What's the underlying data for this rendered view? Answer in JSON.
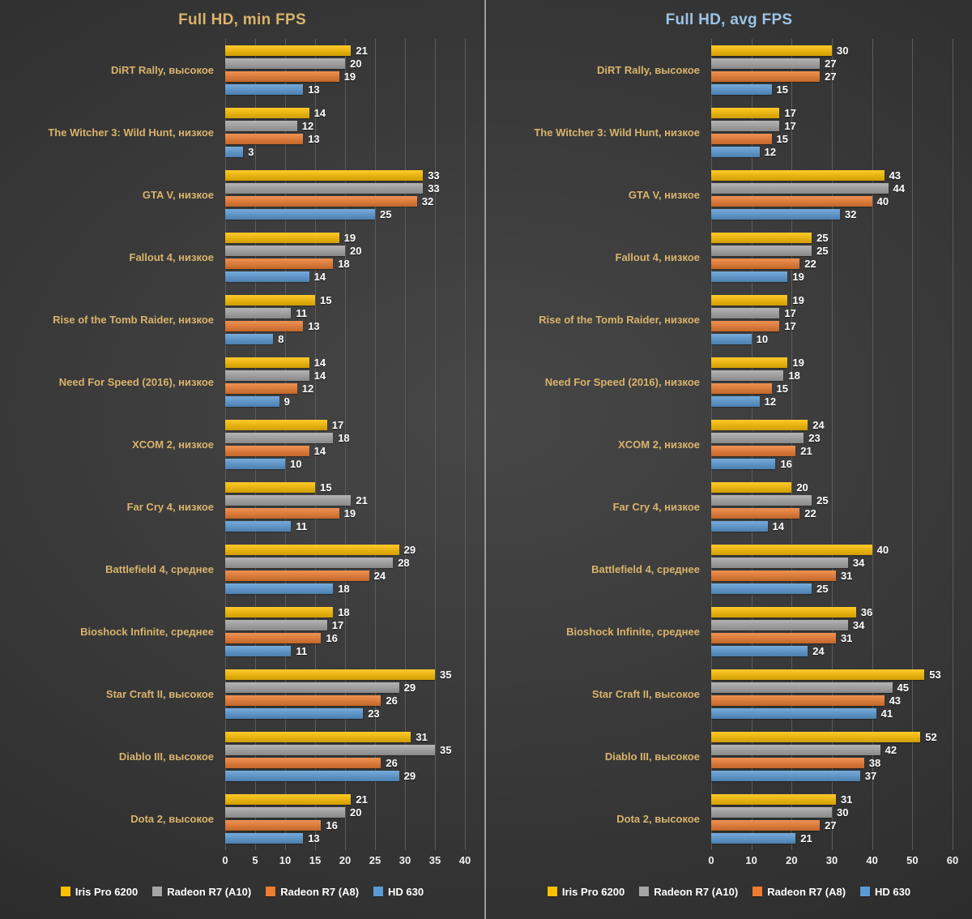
{
  "page": {
    "background_center": "#474747",
    "background_edge": "#1f1f1f",
    "divider_color": "#9b9b9b",
    "grid_color": "#5c5c5c",
    "value_label_color": "#ffffff",
    "tick_label_color": "#f2f2f2",
    "category_label_color": "#d9b36b"
  },
  "chart_data": [
    {
      "type": "bar",
      "orientation": "horizontal",
      "title": "Full HD, min FPS",
      "title_color": "#d9b36b",
      "category_color": "#d9b36b",
      "grid": true,
      "legend_position": "bottom",
      "xlim": [
        0,
        40
      ],
      "xticks": [
        0,
        5,
        10,
        15,
        20,
        25,
        30,
        35,
        40
      ],
      "categories": [
        "DiRT Rally, высокое",
        "The Witcher 3: Wild Hunt, низкое",
        "GTA V, низкое",
        "Fallout 4, низкое",
        "Rise of the Tomb Raider, низкое",
        "Need For Speed (2016), низкое",
        "XCOM 2, низкое",
        "Far Cry 4, низкое",
        "Battlefield 4, среднее",
        "Bioshock Infinite, среднее",
        "Star Craft II, высокое",
        "Diablo III, высокое",
        "Dota 2, высокое"
      ],
      "series": [
        {
          "name": "Iris Pro 6200",
          "color": "#ffc000",
          "values": [
            21,
            14,
            33,
            19,
            15,
            14,
            17,
            15,
            29,
            18,
            35,
            31,
            21
          ]
        },
        {
          "name": "Radeon R7 (A10)",
          "color": "#a6a6a6",
          "values": [
            20,
            12,
            33,
            20,
            11,
            14,
            18,
            21,
            28,
            17,
            29,
            35,
            20
          ]
        },
        {
          "name": "Radeon R7 (A8)",
          "color": "#ed7d31",
          "values": [
            19,
            13,
            32,
            18,
            13,
            12,
            14,
            19,
            24,
            16,
            26,
            26,
            16
          ]
        },
        {
          "name": "HD 630",
          "color": "#5b9bd5",
          "values": [
            13,
            3,
            25,
            14,
            8,
            9,
            10,
            11,
            18,
            11,
            23,
            29,
            13
          ]
        }
      ]
    },
    {
      "type": "bar",
      "orientation": "horizontal",
      "title": "Full HD, avg FPS",
      "title_color": "#9dc3e6",
      "category_color": "#d9b36b",
      "grid": true,
      "legend_position": "bottom",
      "xlim": [
        0,
        60
      ],
      "xticks": [
        0,
        10,
        20,
        30,
        40,
        50,
        60
      ],
      "categories": [
        "DiRT Rally, высокое",
        "The Witcher 3: Wild Hunt, низкое",
        "GTA V, низкое",
        "Fallout 4, низкое",
        "Rise of the Tomb Raider, низкое",
        "Need For Speed (2016), низкое",
        "XCOM 2, низкое",
        "Far Cry 4, низкое",
        "Battlefield 4, среднее",
        "Bioshock Infinite, среднее",
        "Star Craft II, высокое",
        "Diablo III, высокое",
        "Dota 2, высокое"
      ],
      "series": [
        {
          "name": "Iris Pro 6200",
          "color": "#ffc000",
          "values": [
            30,
            17,
            43,
            25,
            19,
            19,
            24,
            20,
            40,
            36,
            53,
            52,
            31
          ]
        },
        {
          "name": "Radeon R7 (A10)",
          "color": "#a6a6a6",
          "values": [
            27,
            17,
            44,
            25,
            17,
            18,
            23,
            25,
            34,
            34,
            45,
            42,
            30
          ]
        },
        {
          "name": "Radeon R7 (A8)",
          "color": "#ed7d31",
          "values": [
            27,
            15,
            40,
            22,
            17,
            15,
            21,
            22,
            31,
            31,
            43,
            38,
            27
          ]
        },
        {
          "name": "HD 630",
          "color": "#5b9bd5",
          "values": [
            15,
            12,
            32,
            19,
            10,
            12,
            16,
            14,
            25,
            24,
            41,
            37,
            21
          ]
        }
      ]
    }
  ]
}
